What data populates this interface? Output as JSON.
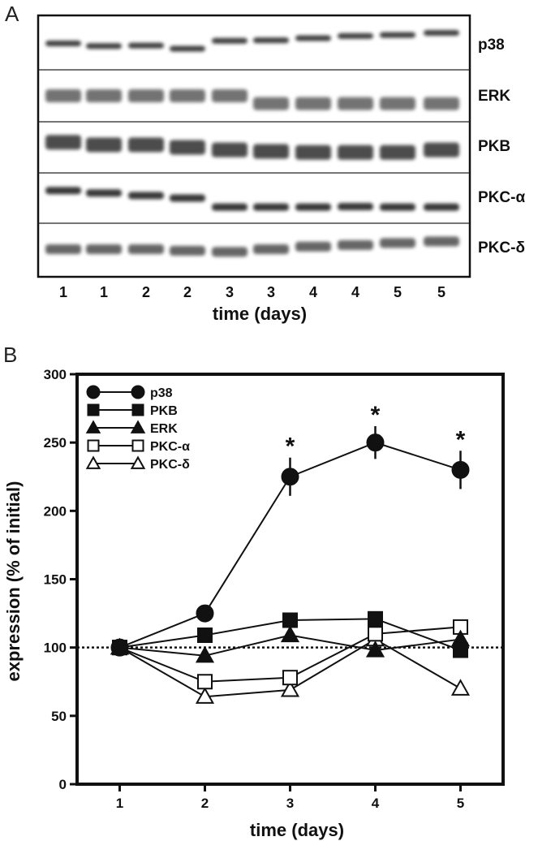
{
  "panels": {
    "a_letter": "A",
    "b_letter": "B"
  },
  "blot": {
    "rows": [
      {
        "label": "p38"
      },
      {
        "label": "ERK"
      },
      {
        "label": "PKB"
      },
      {
        "label": "PKC-α"
      },
      {
        "label": "PKC-δ"
      }
    ],
    "lanes": [
      "1",
      "1",
      "2",
      "2",
      "3",
      "3",
      "4",
      "4",
      "5",
      "5"
    ],
    "xlabel": "time (days)"
  },
  "chart_data": {
    "type": "line",
    "x": [
      1,
      2,
      3,
      4,
      5
    ],
    "xlabel": "time (days)",
    "ylabel": "expression (% of initial)",
    "xlim": [
      0.5,
      5.5
    ],
    "ylim": [
      0,
      300
    ],
    "xticks": [
      "1",
      "2",
      "3",
      "4",
      "5"
    ],
    "yticks": [
      "0",
      "50",
      "100",
      "150",
      "200",
      "250",
      "300"
    ],
    "reference_line": {
      "y": 100,
      "style": "dotted"
    },
    "legend_position": "top-left",
    "series": [
      {
        "name": "p38",
        "marker": "filled-circle",
        "values": [
          100,
          125,
          225,
          250,
          230
        ],
        "errors": [
          0,
          0,
          14,
          12,
          14
        ]
      },
      {
        "name": "PKB",
        "marker": "filled-square",
        "values": [
          100,
          109,
          120,
          121,
          98
        ],
        "errors": [
          0,
          0,
          0,
          0,
          0
        ]
      },
      {
        "name": "ERK",
        "marker": "filled-triangle",
        "values": [
          100,
          94,
          109,
          98,
          106
        ],
        "errors": [
          0,
          0,
          0,
          0,
          0
        ]
      },
      {
        "name": "PKC-α",
        "marker": "open-square",
        "values": [
          100,
          75,
          78,
          110,
          115
        ],
        "errors": [
          0,
          0,
          0,
          0,
          0
        ]
      },
      {
        "name": "PKC-δ",
        "marker": "open-triangle",
        "values": [
          100,
          64,
          69,
          106,
          70
        ],
        "errors": [
          0,
          0,
          0,
          0,
          0
        ]
      }
    ],
    "significance_markers": [
      {
        "x": 3,
        "label": "*"
      },
      {
        "x": 4,
        "label": "*"
      },
      {
        "x": 5,
        "label": "*"
      }
    ]
  }
}
